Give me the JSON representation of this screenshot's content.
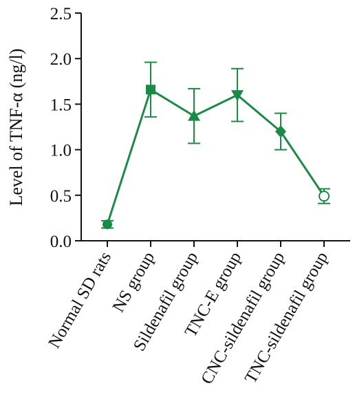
{
  "chart_data": {
    "type": "line",
    "title": "",
    "xlabel": "",
    "ylabel": "Level of TNF-α (ng/l)",
    "categories": [
      "Normal SD rats",
      "NS group",
      "Sildenafil group",
      "TNC-E group",
      "CNC-sildenafil group",
      "TNC-sildenafil group"
    ],
    "series": [
      {
        "values": [
          0.18,
          1.66,
          1.37,
          1.6,
          1.2,
          0.49
        ],
        "error": [
          0.04,
          0.3,
          0.3,
          0.29,
          0.2,
          0.08
        ],
        "markers": [
          "circle",
          "square",
          "triangle-up",
          "triangle-down",
          "diamond",
          "open-circle"
        ]
      }
    ],
    "ylim": [
      0,
      2.5
    ],
    "yticks": [
      "0.0",
      "0.5",
      "1.0",
      "1.5",
      "2.0",
      "2.5"
    ],
    "color": "#1a8a45",
    "grid": false,
    "legend": "none"
  }
}
